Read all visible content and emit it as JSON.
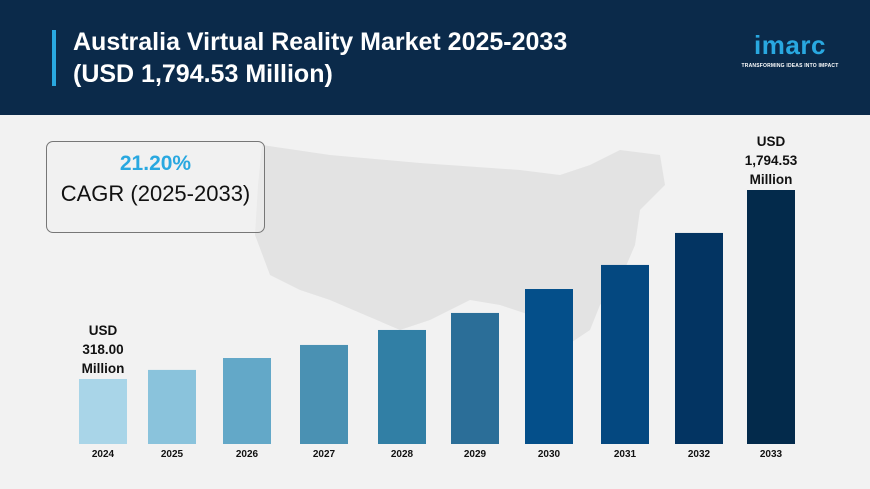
{
  "header": {
    "title_line1": "Australia Virtual Reality Market 2025-2033",
    "title_line2": "(USD 1,794.53 Million)",
    "logo_text": "imarc",
    "logo_tagline": "TRANSFORMING IDEAS INTO IMPACT"
  },
  "cagr": {
    "value": "21.20%",
    "label": "CAGR (2025-2033)"
  },
  "colors": {
    "header_bg": "#0b2a4a",
    "accent": "#29a8e0",
    "background": "#f2f2f2"
  },
  "chart_data": {
    "type": "bar",
    "categories": [
      "2024",
      "2025",
      "2026",
      "2027",
      "2028",
      "2029",
      "2030",
      "2031",
      "2032",
      "2033"
    ],
    "values": [
      318.0,
      389,
      482,
      584,
      701,
      834,
      1021,
      1209,
      1459,
      1794.53
    ],
    "colors": [
      "#a9d5e8",
      "#8ac3dc",
      "#63a8c8",
      "#4a91b3",
      "#317fa5",
      "#2b6e98",
      "#044f8a",
      "#044880",
      "#033462",
      "#032a4b"
    ],
    "annotations": [
      {
        "category": "2024",
        "lines": [
          "USD",
          "318.00",
          "Million"
        ]
      },
      {
        "category": "2033",
        "lines": [
          "USD",
          "1,794.53",
          "Million"
        ]
      }
    ],
    "title": "",
    "xlabel": "",
    "ylabel": "",
    "grid": false
  }
}
